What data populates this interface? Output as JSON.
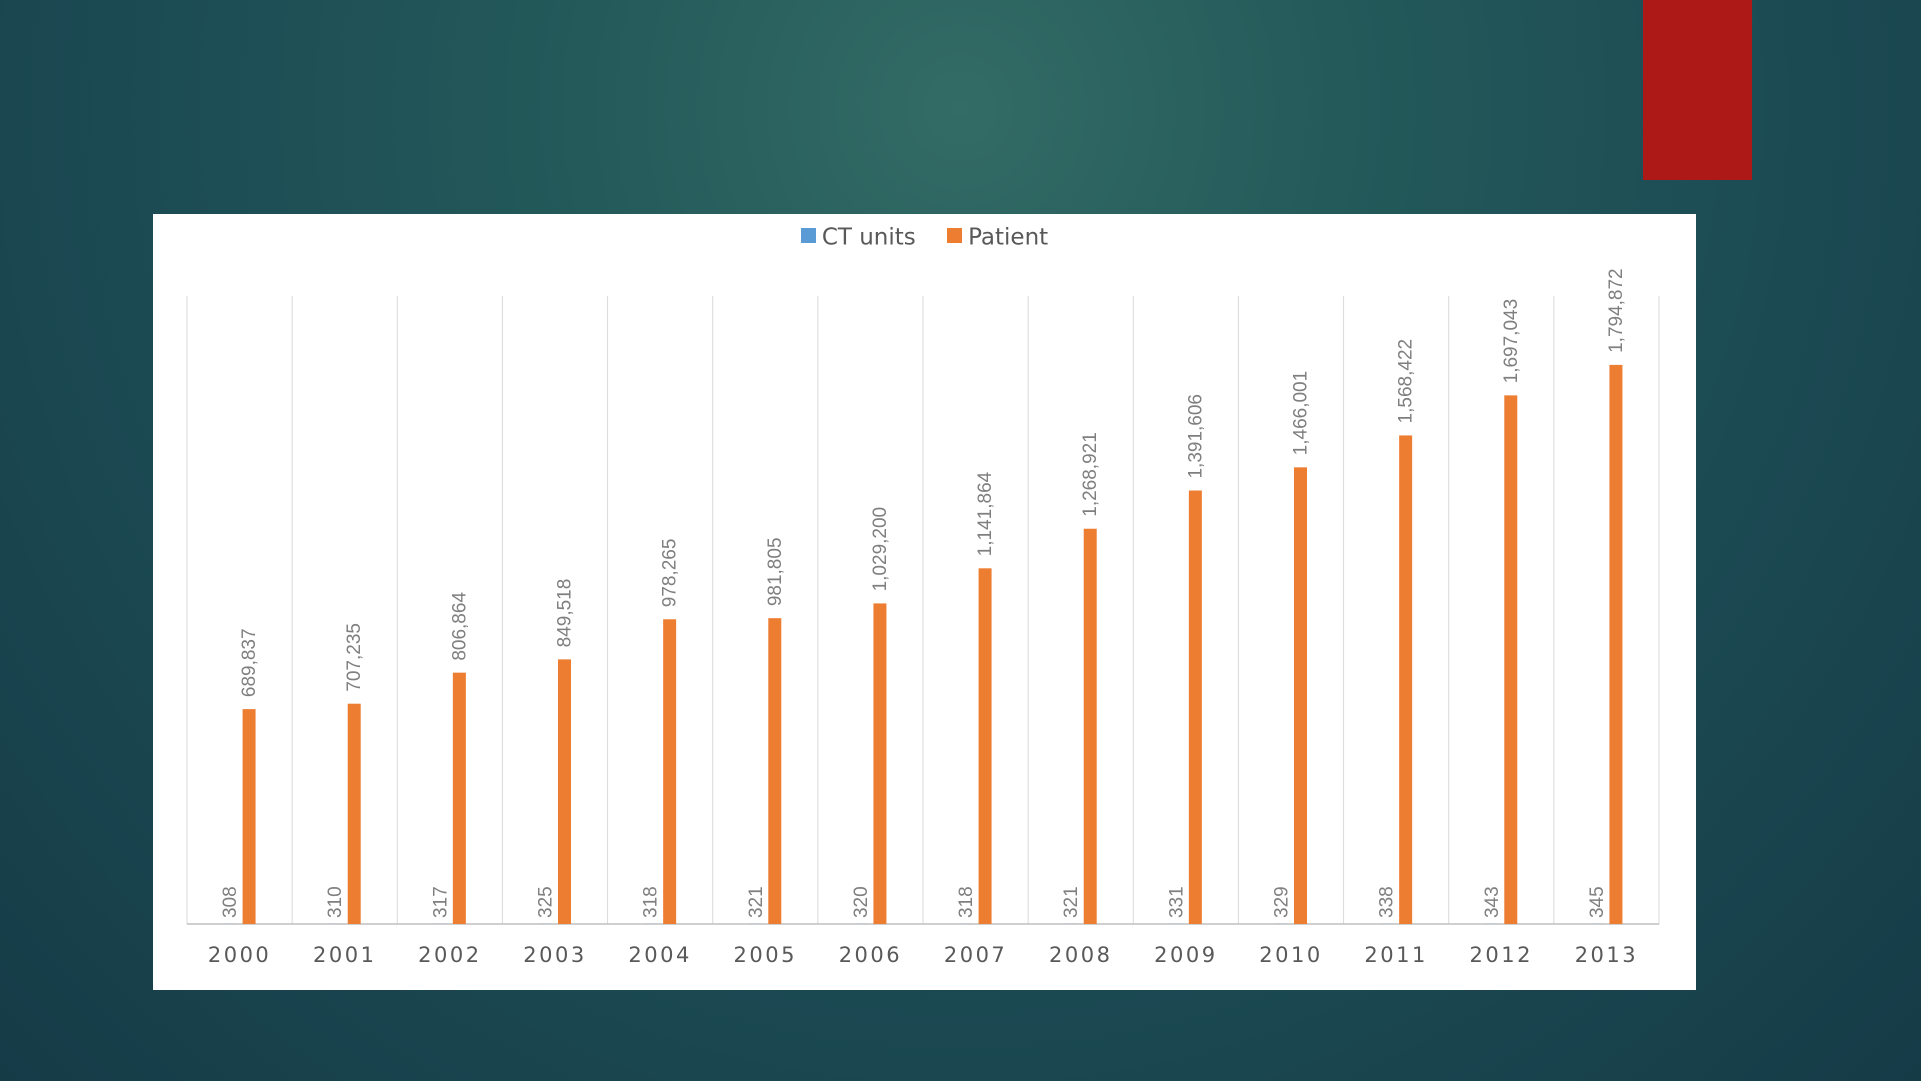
{
  "accent_color": "#ad1916",
  "chart_data": {
    "type": "bar",
    "title": "",
    "xlabel": "",
    "ylabel": "",
    "categories": [
      "2000",
      "2001",
      "2002",
      "2003",
      "2004",
      "2005",
      "2006",
      "2007",
      "2008",
      "2009",
      "2010",
      "2011",
      "2012",
      "2013"
    ],
    "series": [
      {
        "name": "CT units",
        "color": "#5b9bd5",
        "values": [
          308,
          310,
          317,
          325,
          318,
          321,
          320,
          318,
          321,
          331,
          329,
          338,
          343,
          345
        ],
        "labels": [
          "308",
          "310",
          "317",
          "325",
          "318",
          "321",
          "320",
          "318",
          "321",
          "331",
          "329",
          "338",
          "343",
          "345"
        ]
      },
      {
        "name": "Patient",
        "color": "#ed7d31",
        "values": [
          689837,
          707235,
          806864,
          849518,
          978265,
          981805,
          1029200,
          1141864,
          1268921,
          1391606,
          1466001,
          1568422,
          1697043,
          1794872
        ],
        "labels": [
          "689,837",
          "707,235",
          "806,864",
          "849,518",
          "978,265",
          "981,805",
          "1,029,200",
          "1,141,864",
          "1,268,921",
          "1,391,606",
          "1,466,001",
          "1,568,422",
          "1,697,043",
          "1,794,872"
        ]
      }
    ],
    "ylim": [
      0,
      2000000
    ],
    "grid": "vertical category separators",
    "legend_position": "top"
  }
}
